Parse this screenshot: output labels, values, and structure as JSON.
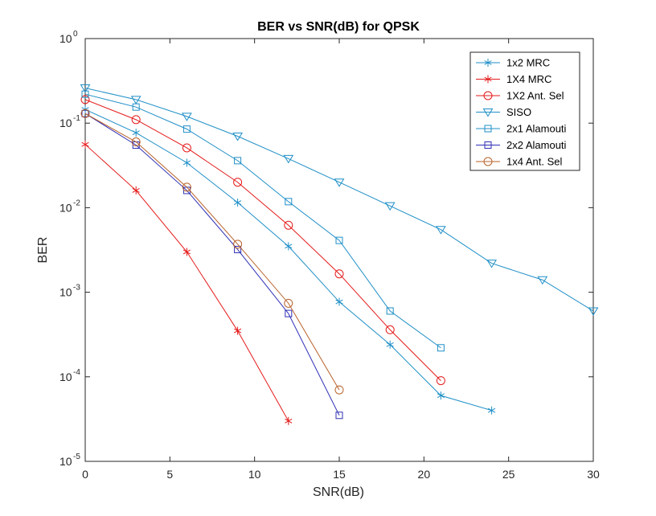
{
  "chart_data": {
    "type": "line",
    "title": "BER vs SNR(dB) for QPSK",
    "xlabel": "SNR(dB)",
    "ylabel": "BER",
    "xlim": [
      0,
      30
    ],
    "ylim": [
      1e-05,
      1
    ],
    "yscale": "log",
    "grid": false,
    "legend_position": "top-right",
    "x_ticks": [
      "0",
      "5",
      "10",
      "15",
      "20",
      "25",
      "30"
    ],
    "y_ticks": [
      "10",
      "10",
      "10",
      "10",
      "10",
      "10"
    ],
    "y_tick_exponents": [
      "-5",
      "-4",
      "-3",
      "-2",
      "-1",
      "0"
    ],
    "series": [
      {
        "name": "1x2 MRC",
        "color": "#1f8fc7",
        "marker": "asterisk",
        "x": [
          0,
          3,
          6,
          9,
          12,
          15,
          18,
          21,
          24
        ],
        "y": [
          0.145,
          0.077,
          0.034,
          0.0115,
          0.0035,
          0.00077,
          0.00024,
          6e-05,
          4e-05
        ]
      },
      {
        "name": "1X4 MRC",
        "color": "#e41a1a",
        "marker": "asterisk",
        "x": [
          0,
          3,
          6,
          9,
          12
        ],
        "y": [
          0.056,
          0.016,
          0.003,
          0.00035,
          3e-05
        ]
      },
      {
        "name": "1X2 Ant. Sel",
        "color": "#e41a1a",
        "marker": "circle",
        "x": [
          0,
          3,
          6,
          9,
          12,
          15,
          18,
          21
        ],
        "y": [
          0.19,
          0.11,
          0.051,
          0.02,
          0.0062,
          0.00165,
          0.00036,
          9e-05
        ]
      },
      {
        "name": "SISO",
        "color": "#1f8fc7",
        "marker": "triangle-down",
        "x": [
          0,
          3,
          6,
          9,
          12,
          15,
          18,
          21,
          24,
          27,
          30
        ],
        "y": [
          0.26,
          0.19,
          0.12,
          0.07,
          0.038,
          0.02,
          0.0105,
          0.0055,
          0.0022,
          0.0014,
          0.0006
        ]
      },
      {
        "name": "2x1 Alamouti",
        "color": "#1f8fc7",
        "marker": "square",
        "x": [
          0,
          3,
          6,
          9,
          12,
          15,
          18,
          21
        ],
        "y": [
          0.22,
          0.155,
          0.085,
          0.036,
          0.0118,
          0.0041,
          0.0006,
          0.00022
        ]
      },
      {
        "name": "2x2 Alamouti",
        "color": "#2f2fb5",
        "marker": "square",
        "x": [
          0,
          3,
          6,
          9,
          12,
          15
        ],
        "y": [
          0.13,
          0.055,
          0.016,
          0.0032,
          0.00056,
          3.5e-05
        ]
      },
      {
        "name": "1x4 Ant. Sel",
        "color": "#b8622b",
        "marker": "circle",
        "x": [
          0,
          3,
          6,
          9,
          12,
          15
        ],
        "y": [
          0.13,
          0.06,
          0.0175,
          0.0037,
          0.00074,
          7e-05
        ]
      }
    ]
  }
}
